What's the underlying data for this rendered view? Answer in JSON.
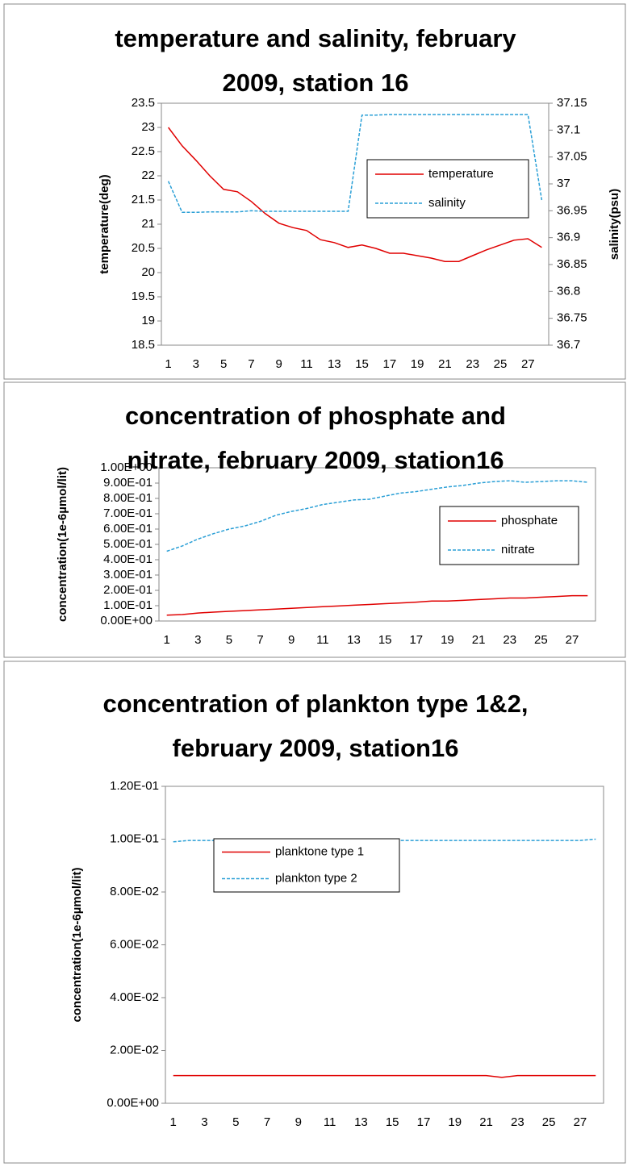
{
  "chart_data": [
    {
      "type": "line",
      "title": "temperature and salinity, february 2009, station 16",
      "y_label": "temperature(deg)",
      "y2_label": "salinity(psu)",
      "categories": [
        1,
        null,
        3,
        null,
        5,
        null,
        7,
        null,
        9,
        null,
        11,
        null,
        13,
        null,
        15,
        null,
        17,
        null,
        19,
        null,
        21,
        null,
        23,
        null,
        25,
        null,
        27,
        null
      ],
      "series": [
        {
          "name": "temperature",
          "color": "#e00000",
          "dash": false,
          "values": [
            23.0,
            22.62,
            22.32,
            22.0,
            21.72,
            21.67,
            21.47,
            21.22,
            21.02,
            20.93,
            20.87,
            20.68,
            20.62,
            20.52,
            20.57,
            20.5,
            20.4,
            20.4,
            20.35,
            20.3,
            20.23,
            20.23,
            20.35,
            20.47,
            20.57,
            20.67,
            20.7,
            20.52
          ]
        },
        {
          "name": "salinity",
          "color": "#2a9fd6",
          "dash": true,
          "axis": "y2",
          "values": [
            37.005,
            36.947,
            36.947,
            36.948,
            36.948,
            36.948,
            36.95,
            36.949,
            36.949,
            36.949,
            36.949,
            36.949,
            36.949,
            36.949,
            37.128,
            37.128,
            37.129,
            37.129,
            37.129,
            37.129,
            37.129,
            37.129,
            37.129,
            37.129,
            37.129,
            37.129,
            37.129,
            36.97
          ]
        }
      ],
      "ylim": [
        18.5,
        23.5
      ],
      "yticks": [
        18.5,
        19,
        19.5,
        20,
        20.5,
        21,
        21.5,
        22,
        22.5,
        23,
        23.5
      ],
      "y2lim": [
        36.7,
        37.15
      ],
      "y2ticks": [
        36.7,
        36.75,
        36.8,
        36.85,
        36.9,
        36.95,
        37,
        37.05,
        37.1,
        37.15
      ]
    },
    {
      "type": "line",
      "title": "concentration of phosphate and nitrate, february 2009, station16",
      "y_label": "concentration(1e-6µmol/lit)",
      "categories": [
        1,
        null,
        3,
        null,
        5,
        null,
        7,
        null,
        9,
        null,
        11,
        null,
        13,
        null,
        15,
        null,
        17,
        null,
        19,
        null,
        21,
        null,
        23,
        null,
        25,
        null,
        27,
        null
      ],
      "series": [
        {
          "name": "phosphate",
          "color": "#e00000",
          "dash": false,
          "values": [
            0.038,
            0.042,
            0.052,
            0.058,
            0.063,
            0.068,
            0.073,
            0.078,
            0.083,
            0.088,
            0.093,
            0.098,
            0.103,
            0.108,
            0.113,
            0.118,
            0.123,
            0.13,
            0.13,
            0.135,
            0.14,
            0.145,
            0.15,
            0.15,
            0.155,
            0.16,
            0.165,
            0.165
          ]
        },
        {
          "name": "nitrate",
          "color": "#2a9fd6",
          "dash": true,
          "values": [
            0.455,
            0.49,
            0.535,
            0.57,
            0.6,
            0.62,
            0.65,
            0.69,
            0.715,
            0.735,
            0.76,
            0.775,
            0.79,
            0.795,
            0.815,
            0.835,
            0.845,
            0.86,
            0.875,
            0.885,
            0.9,
            0.91,
            0.915,
            0.905,
            0.91,
            0.915,
            0.915,
            0.905
          ]
        }
      ],
      "ylim": [
        0,
        1
      ],
      "yticks": [
        {
          "value": 0,
          "label": "0.00E+00"
        },
        {
          "value": 0.1,
          "label": "1.00E-01"
        },
        {
          "value": 0.2,
          "label": "2.00E-01"
        },
        {
          "value": 0.3,
          "label": "3.00E-01"
        },
        {
          "value": 0.4,
          "label": "4.00E-01"
        },
        {
          "value": 0.5,
          "label": "5.00E-01"
        },
        {
          "value": 0.6,
          "label": "6.00E-01"
        },
        {
          "value": 0.7,
          "label": "7.00E-01"
        },
        {
          "value": 0.8,
          "label": "8.00E-01"
        },
        {
          "value": 0.9,
          "label": "9.00E-01"
        },
        {
          "value": 1,
          "label": "1.00E+00"
        }
      ]
    },
    {
      "type": "line",
      "title": "concentration of plankton type 1&2, february 2009, station16",
      "y_label": "concentration(1e-6µmol/lit)",
      "categories": [
        1,
        null,
        3,
        null,
        5,
        null,
        7,
        null,
        9,
        null,
        11,
        null,
        13,
        null,
        15,
        null,
        17,
        null,
        19,
        null,
        21,
        null,
        23,
        null,
        25,
        null,
        27,
        null
      ],
      "series": [
        {
          "name": "planktone type 1",
          "color": "#e00000",
          "dash": false,
          "values": [
            0.0105,
            0.0105,
            0.0105,
            0.0105,
            0.0105,
            0.0105,
            0.0105,
            0.0105,
            0.0105,
            0.0105,
            0.0105,
            0.0105,
            0.0105,
            0.0105,
            0.0105,
            0.0105,
            0.0105,
            0.0105,
            0.0105,
            0.0105,
            0.0105,
            0.0098,
            0.0105,
            0.0105,
            0.0105,
            0.0105,
            0.0105,
            0.0105
          ]
        },
        {
          "name": "plankton type 2",
          "color": "#2a9fd6",
          "dash": true,
          "values": [
            0.099,
            0.0995,
            0.0995,
            0.0995,
            0.0995,
            0.0995,
            0.0995,
            0.0995,
            0.0995,
            0.0995,
            0.0995,
            0.0995,
            0.0995,
            0.0995,
            0.0995,
            0.0995,
            0.0995,
            0.0995,
            0.0995,
            0.0995,
            0.0995,
            0.0995,
            0.0995,
            0.0995,
            0.0995,
            0.0995,
            0.0995,
            0.1
          ]
        }
      ],
      "ylim": [
        0,
        0.12
      ],
      "yticks": [
        {
          "value": 0,
          "label": "0.00E+00"
        },
        {
          "value": 0.02,
          "label": "2.00E-02"
        },
        {
          "value": 0.04,
          "label": "4.00E-02"
        },
        {
          "value": 0.06,
          "label": "6.00E-02"
        },
        {
          "value": 0.08,
          "label": "8.00E-02"
        },
        {
          "value": 0.1,
          "label": "1.00E-01"
        },
        {
          "value": 0.12,
          "label": "1.20E-01"
        }
      ]
    }
  ]
}
